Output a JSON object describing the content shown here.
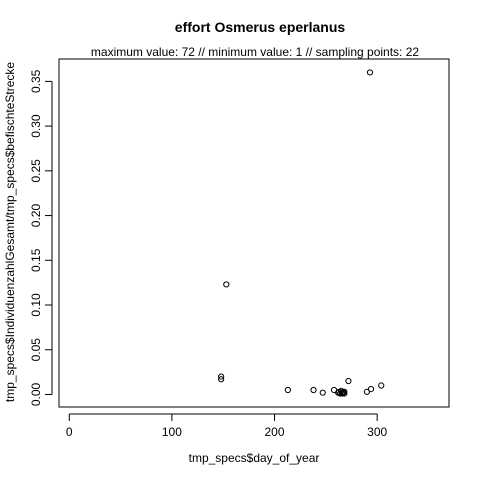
{
  "chart_data": {
    "type": "scatter",
    "title": "effort Osmerus eperlanus",
    "subtitle": "maximum value: 72  //  minimum value: 1  // sampling points: 22",
    "xlabel": "tmp_specs$day_of_year",
    "ylabel": "tmp_specs$IndividuenzahlGesamt/tmp_specs$befischteStrecke",
    "xlim": [
      -10,
      370
    ],
    "ylim": [
      -0.014,
      0.375
    ],
    "xticks": [
      0,
      100,
      200,
      300
    ],
    "yticks": [
      0.0,
      0.05,
      0.1,
      0.15,
      0.2,
      0.25,
      0.3,
      0.35
    ],
    "ytick_labels": [
      "0.00",
      "0.05",
      "0.10",
      "0.15",
      "0.20",
      "0.25",
      "0.30",
      "0.35"
    ],
    "grid": false,
    "points": [
      {
        "x": 148,
        "y": 0.02
      },
      {
        "x": 148,
        "y": 0.017
      },
      {
        "x": 153,
        "y": 0.123
      },
      {
        "x": 213,
        "y": 0.005
      },
      {
        "x": 238,
        "y": 0.005
      },
      {
        "x": 247,
        "y": 0.002
      },
      {
        "x": 258,
        "y": 0.005
      },
      {
        "x": 263,
        "y": 0.003
      },
      {
        "x": 264,
        "y": 0.001
      },
      {
        "x": 265,
        "y": 0.004
      },
      {
        "x": 266,
        "y": 0.002
      },
      {
        "x": 266,
        "y": 0.001
      },
      {
        "x": 267,
        "y": 0.003
      },
      {
        "x": 267,
        "y": 0.002
      },
      {
        "x": 268,
        "y": 0.001
      },
      {
        "x": 268,
        "y": 0.003
      },
      {
        "x": 272,
        "y": 0.015
      },
      {
        "x": 290,
        "y": 0.003
      },
      {
        "x": 293,
        "y": 0.36
      },
      {
        "x": 294,
        "y": 0.006
      },
      {
        "x": 304,
        "y": 0.01
      },
      {
        "x": 262,
        "y": 0.002
      }
    ]
  }
}
